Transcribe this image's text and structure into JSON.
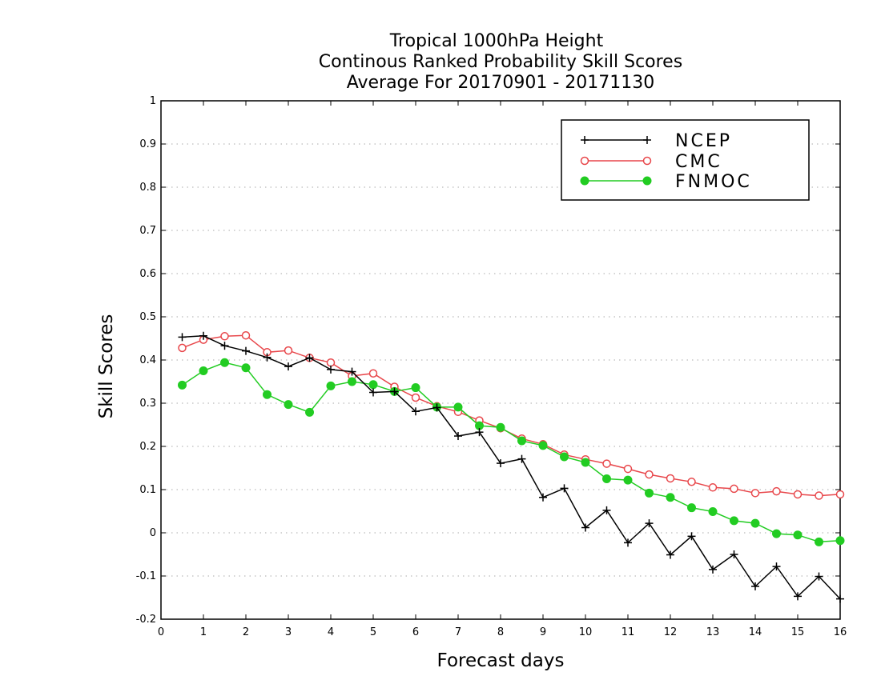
{
  "chart_data": {
    "type": "line",
    "title_lines": [
      "Tropical 1000hPa Height",
      "Continous Ranked Probability Skill Scores",
      "Average For 20170901 - 20171130"
    ],
    "xlabel": "Forecast days",
    "ylabel": "Skill Scores",
    "xlim": [
      0,
      16
    ],
    "ylim": [
      -0.2,
      1
    ],
    "xticks": [
      0,
      1,
      2,
      3,
      4,
      5,
      6,
      7,
      8,
      9,
      10,
      11,
      12,
      13,
      14,
      15,
      16
    ],
    "yticks": [
      -0.2,
      -0.1,
      0,
      0.1,
      0.2,
      0.3,
      0.4,
      0.5,
      0.6,
      0.7,
      0.8,
      0.9,
      1
    ],
    "ytick_labels": [
      "-0.2",
      "-0.1",
      "0",
      "0.1",
      "0.2",
      "0.3",
      "0.4",
      "0.5",
      "0.6",
      "0.7",
      "0.8",
      "0.9",
      "1"
    ],
    "grid": "horizontal dotted",
    "legend_position": "top-right",
    "x": [
      0.5,
      1,
      1.5,
      2,
      2.5,
      3,
      3.5,
      4,
      4.5,
      5,
      5.5,
      6,
      6.5,
      7,
      7.5,
      8,
      8.5,
      9,
      9.5,
      10,
      10.5,
      11,
      11.5,
      12,
      12.5,
      13,
      13.5,
      14,
      14.5,
      15,
      15.5,
      16
    ],
    "series": [
      {
        "name": "NCEP",
        "color": "#000000",
        "marker": "plus",
        "values": [
          0.453,
          0.456,
          0.433,
          0.421,
          0.406,
          0.385,
          0.405,
          0.378,
          0.373,
          0.325,
          0.327,
          0.281,
          0.29,
          0.224,
          0.233,
          0.161,
          0.171,
          0.082,
          0.103,
          0.012,
          0.052,
          -0.023,
          0.022,
          -0.051,
          -0.008,
          -0.085,
          -0.05,
          -0.124,
          -0.078,
          -0.147,
          -0.101,
          -0.153
        ]
      },
      {
        "name": "CMC",
        "color": "#e8474b",
        "marker": "open-circle",
        "values": [
          0.428,
          0.447,
          0.455,
          0.457,
          0.418,
          0.422,
          0.405,
          0.394,
          0.363,
          0.369,
          0.338,
          0.313,
          0.293,
          0.28,
          0.26,
          0.242,
          0.218,
          0.205,
          0.181,
          0.17,
          0.16,
          0.148,
          0.135,
          0.126,
          0.118,
          0.105,
          0.102,
          0.092,
          0.096,
          0.089,
          0.086,
          0.089
        ]
      },
      {
        "name": "FNMOC",
        "color": "#22cc22",
        "marker": "filled-circle",
        "values": [
          0.342,
          0.375,
          0.394,
          0.382,
          0.32,
          0.297,
          0.279,
          0.34,
          0.35,
          0.343,
          0.327,
          0.336,
          0.291,
          0.291,
          0.248,
          0.244,
          0.213,
          0.202,
          0.176,
          0.163,
          0.125,
          0.122,
          0.092,
          0.082,
          0.058,
          0.049,
          0.028,
          0.022,
          -0.002,
          -0.005,
          -0.021,
          -0.018
        ]
      }
    ]
  }
}
